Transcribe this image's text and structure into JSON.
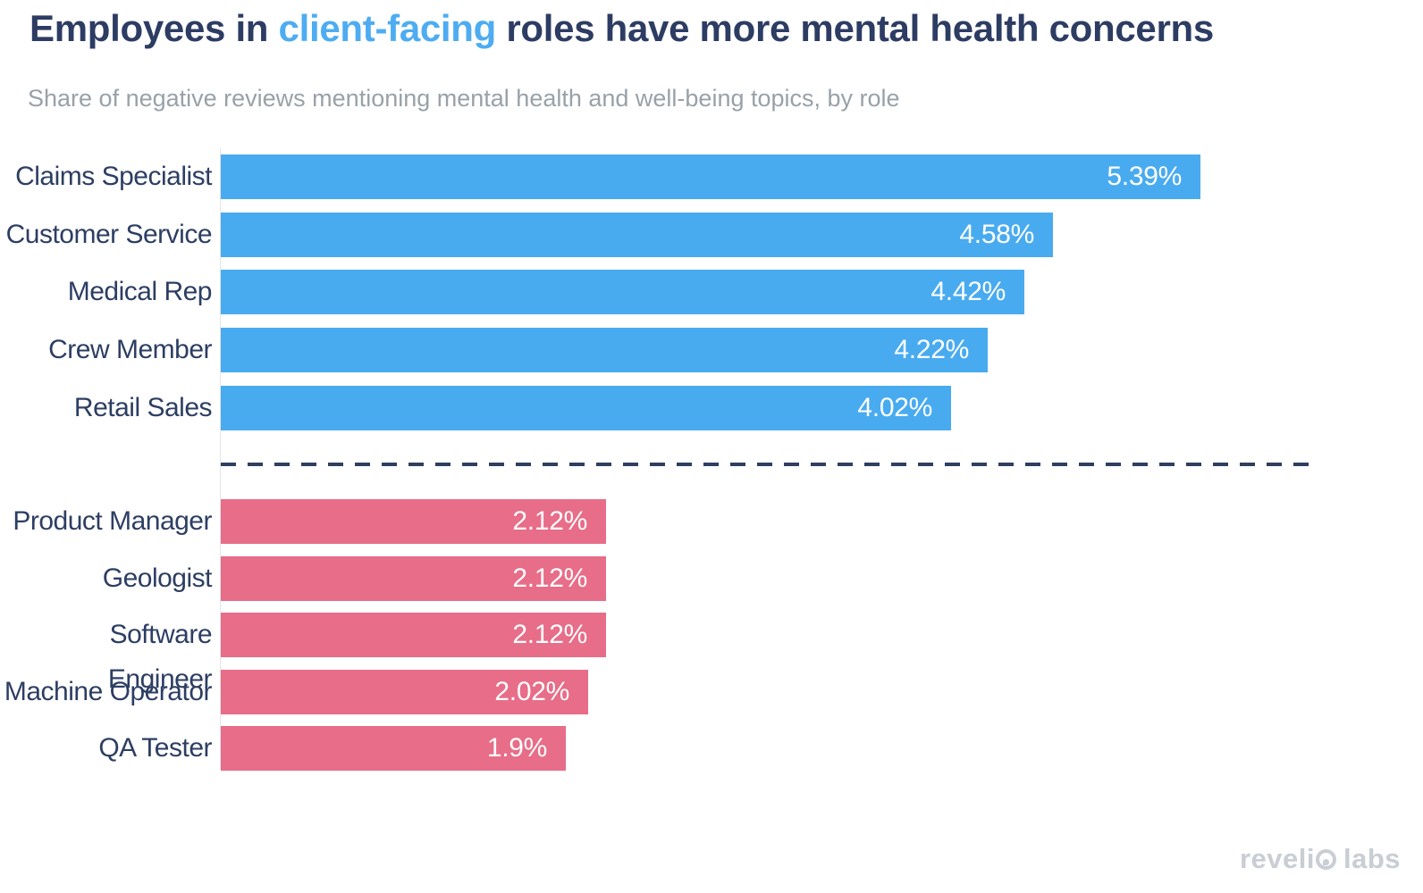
{
  "title": {
    "pre": "Employees in ",
    "highlight": "client-facing",
    "post": " roles have more mental health concerns"
  },
  "subtitle": "Share of negative reviews mentioning mental health and well-being topics, by role",
  "logo": {
    "part1": "reveli",
    "part2": "labs",
    "full_text": "revelio labs"
  },
  "colors": {
    "title_navy": "#2d3c63",
    "highlight_blue": "#4dacf2",
    "subtitle_gray": "#99a1a8",
    "client_facing_bar": "#49abef",
    "non_client_facing_bar": "#e76d88",
    "divider_navy": "#2e3f5f",
    "value_label_white": "#ffffff",
    "logo_gray": "#c9cdd4"
  },
  "chart_data": {
    "type": "bar",
    "orientation": "horizontal",
    "title": "Employees in client-facing roles have more mental health concerns",
    "subtitle": "Share of negative reviews mentioning mental health and well-being topics, by role",
    "xlabel": "",
    "ylabel": "",
    "unit": "%",
    "xlim": [
      0,
      6
    ],
    "grid": false,
    "legend": "none",
    "divider": "dashed line separating client-facing roles from non-client-facing roles",
    "groups": [
      {
        "name": "client-facing",
        "color": "#49abef",
        "rows": [
          {
            "label": "Claims Specialist",
            "value": 5.39,
            "value_label": "5.39%"
          },
          {
            "label": "Customer Service",
            "value": 4.58,
            "value_label": "4.58%"
          },
          {
            "label": "Medical Rep",
            "value": 4.42,
            "value_label": "4.42%"
          },
          {
            "label": "Crew Member",
            "value": 4.22,
            "value_label": "4.22%"
          },
          {
            "label": "Retail Sales",
            "value": 4.02,
            "value_label": "4.02%"
          }
        ]
      },
      {
        "name": "non-client-facing",
        "color": "#e76d88",
        "rows": [
          {
            "label": "Product Manager",
            "value": 2.12,
            "value_label": "2.12%"
          },
          {
            "label": "Geologist",
            "value": 2.12,
            "value_label": "2.12%"
          },
          {
            "label": "Software Engineer",
            "value": 2.12,
            "value_label": "2.12%"
          },
          {
            "label": "Machine Operator",
            "value": 2.02,
            "value_label": "2.02%"
          },
          {
            "label": "QA Tester",
            "value": 1.9,
            "value_label": "1.9%"
          }
        ]
      }
    ]
  }
}
